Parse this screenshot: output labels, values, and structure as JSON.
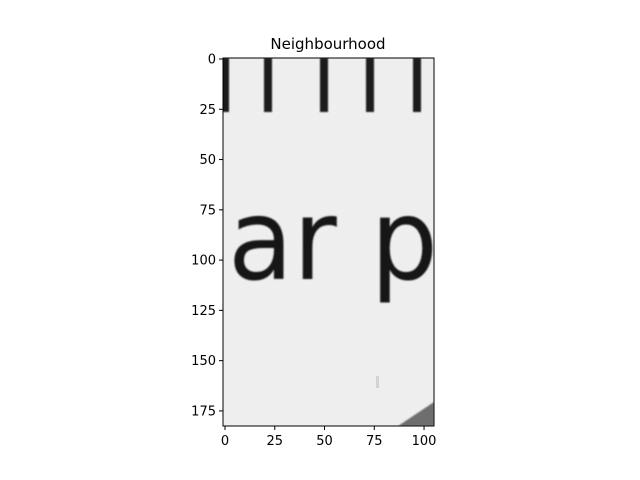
{
  "title": "Neighbourhood",
  "x_ticks": [
    "0",
    "25",
    "50",
    "75",
    "100"
  ],
  "y_ticks": [
    "0",
    "25",
    "50",
    "75",
    "100",
    "125",
    "150",
    "175"
  ],
  "image": {
    "content": "ar p",
    "extent_x": [
      0,
      104
    ],
    "extent_y": [
      0,
      182
    ],
    "background": "#f2f2f2",
    "ink": "#161616",
    "corner_shadow": "#6e6e6e"
  }
}
